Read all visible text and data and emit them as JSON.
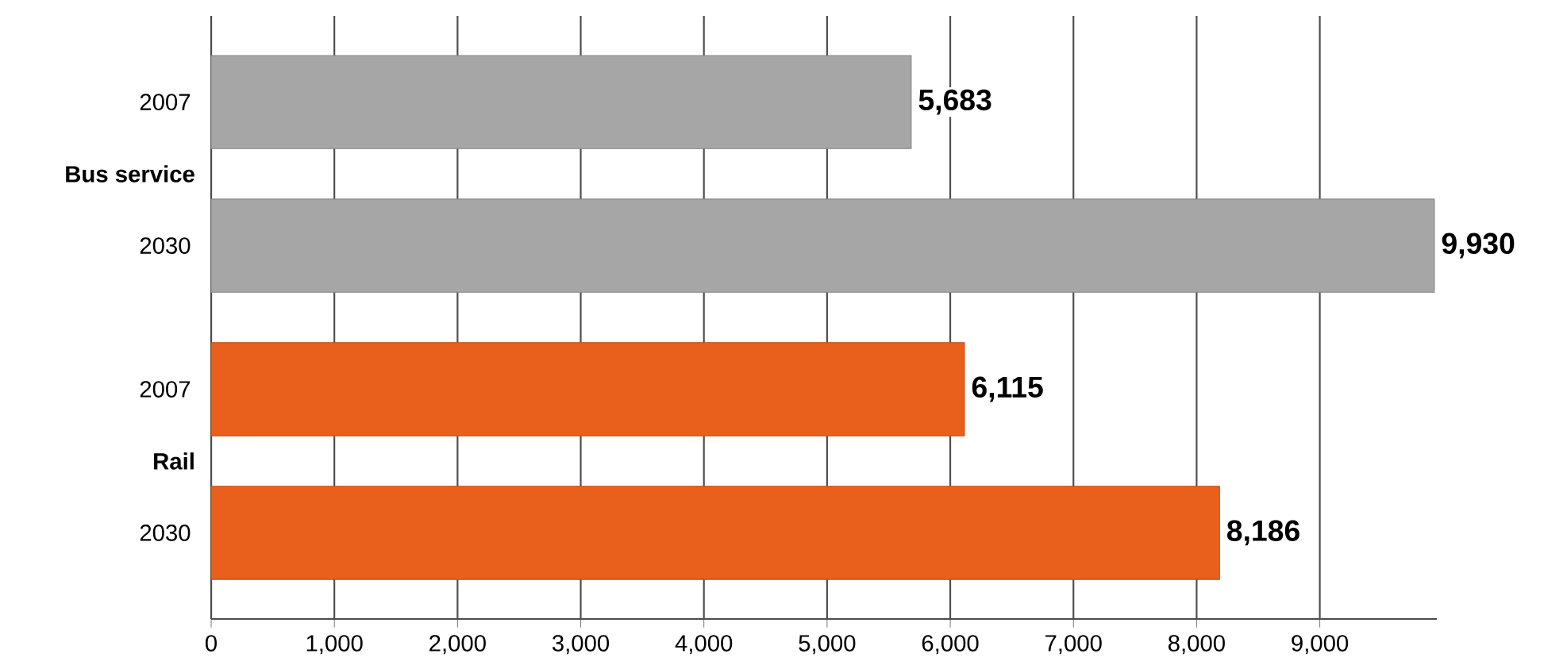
{
  "chart_data": {
    "type": "bar",
    "orientation": "horizontal",
    "categories": [
      "2007",
      "2030",
      "2007",
      "2030"
    ],
    "series": [
      {
        "name": "Bus service",
        "color": "#a6a6a6",
        "values": [
          5683,
          9930,
          null,
          null
        ],
        "value_labels": [
          "5,683",
          "9,930",
          null,
          null
        ]
      },
      {
        "name": "Rail",
        "color": "#e8601c",
        "values": [
          null,
          null,
          6115,
          8186
        ],
        "value_labels": [
          null,
          null,
          "6,115",
          "8,186"
        ]
      }
    ],
    "xlim": [
      0,
      9950
    ],
    "xticks": [
      0,
      {
        "value": 1000,
        "label": "1,000"
      },
      {
        "value": 2000,
        "label": "2,000"
      },
      {
        "value": 3000,
        "label": "3,000"
      },
      {
        "value": 4000,
        "label": "4,000"
      },
      {
        "value": 5000,
        "label": "5,000"
      },
      {
        "value": 6000,
        "label": "6,000"
      },
      {
        "value": 7000,
        "label": "7,000"
      },
      {
        "value": 8000,
        "label": "8,000"
      },
      {
        "value": 9000,
        "label": "9,000"
      }
    ],
    "grid": "x"
  }
}
